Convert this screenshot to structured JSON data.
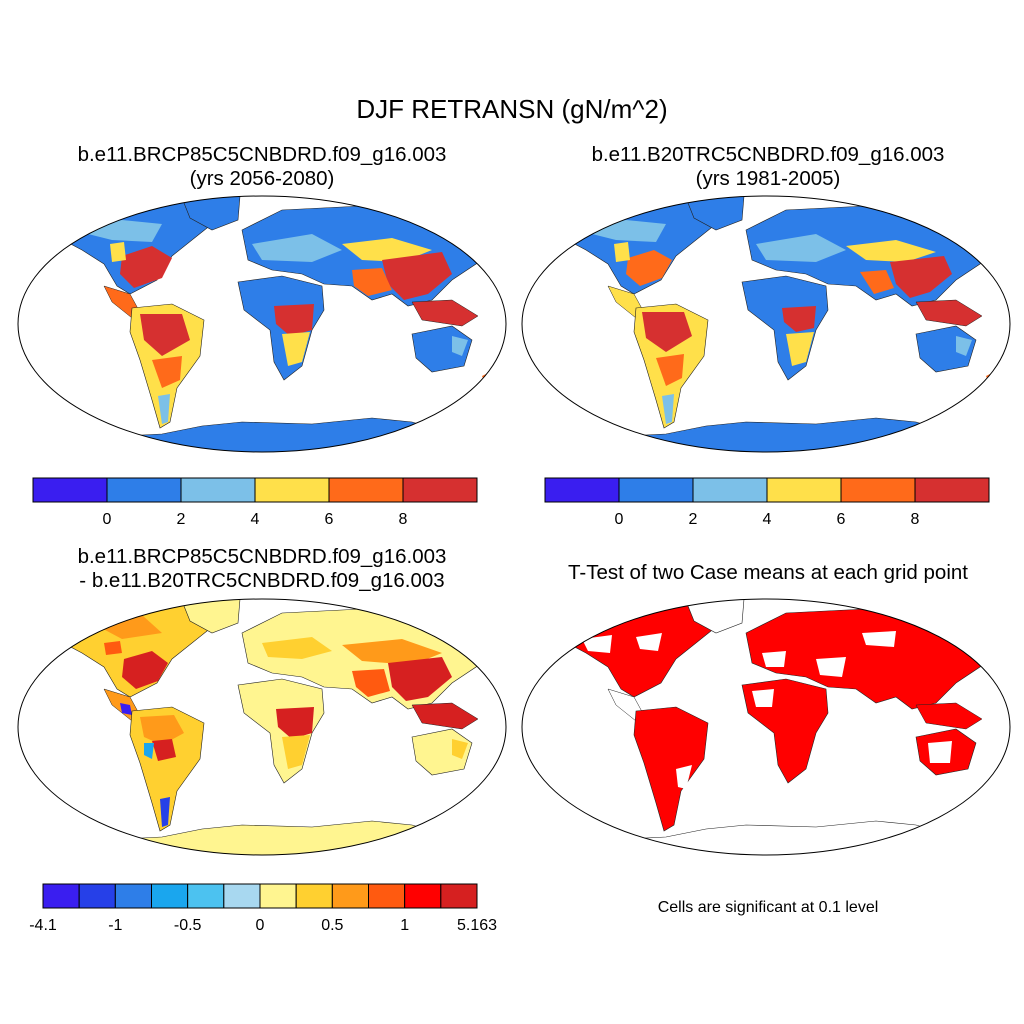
{
  "figure": {
    "title": "DJF RETRANSN (gN/m^2)",
    "panels": [
      {
        "title_line1": "b.e11.BRCP85C5CNBDRD.f09_g16.003",
        "title_line2": "(yrs 2056-2080)",
        "colorbar": {
          "colors": [
            "#3a1ef0",
            "#2e7ee8",
            "#7cc0e8",
            "#ffe04a",
            "#ff6a1a",
            "#d63030"
          ],
          "labels": [
            "0",
            "2",
            "4",
            "6",
            "8"
          ]
        }
      },
      {
        "title_line1": "b.e11.B20TRC5CNBDRD.f09_g16.003",
        "title_line2": "(yrs 1981-2005)",
        "colorbar": {
          "colors": [
            "#3a1ef0",
            "#2e7ee8",
            "#7cc0e8",
            "#ffe04a",
            "#ff6a1a",
            "#d63030"
          ],
          "labels": [
            "0",
            "2",
            "4",
            "6",
            "8"
          ]
        }
      },
      {
        "title_line1": "b.e11.BRCP85C5CNBDRD.f09_g16.003",
        "title_line2": "- b.e11.B20TRC5CNBDRD.f09_g16.003",
        "colorbar": {
          "colors": [
            "#3a1ef0",
            "#2640e8",
            "#2e7ee8",
            "#1aa6ee",
            "#4cc2f0",
            "#a8d8f0",
            "#fff590",
            "#ffd030",
            "#ff9a1a",
            "#ff5a10",
            "#ff0000",
            "#d62020"
          ],
          "labels": [
            "-4.1",
            "-1",
            "-0.5",
            "0",
            "0.5",
            "1",
            "5.163"
          ]
        }
      },
      {
        "title_line1": "T-Test of two Case means at each grid point",
        "note": "Cells are significant at 0.1 level",
        "significance_color": "#ff0000"
      }
    ]
  }
}
